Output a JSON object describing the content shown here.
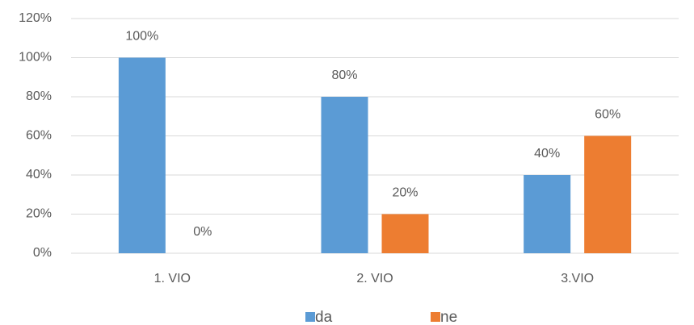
{
  "chart_data": {
    "type": "bar",
    "categories": [
      "1. VIO",
      "2. VIO",
      "3.VIO"
    ],
    "series": [
      {
        "name": "da",
        "color": "#5b9bd5",
        "values": [
          100,
          80,
          40
        ],
        "value_labels": [
          "100%",
          "80%",
          "40%"
        ]
      },
      {
        "name": "ne",
        "color": "#ed7d31",
        "values": [
          0,
          20,
          60
        ],
        "value_labels": [
          "0%",
          "20%",
          "60%"
        ]
      }
    ],
    "ylim": [
      0,
      120
    ],
    "yticks": [
      {
        "value": 0,
        "label": "0%"
      },
      {
        "value": 20,
        "label": "20%"
      },
      {
        "value": 40,
        "label": "40%"
      },
      {
        "value": 60,
        "label": "60%"
      },
      {
        "value": 80,
        "label": "80%"
      },
      {
        "value": 100,
        "label": "100%"
      },
      {
        "value": 120,
        "label": "120%"
      }
    ],
    "grid": true,
    "legend": "bottom"
  }
}
